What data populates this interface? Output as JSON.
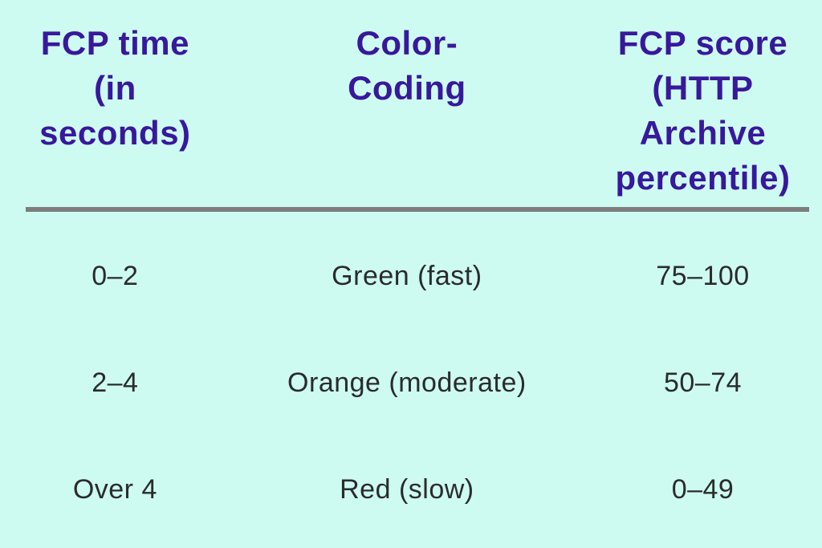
{
  "colors": {
    "background": "#cdfbf2",
    "header_text": "#38189b",
    "body_text": "#2b2b2b",
    "divider": "#7d7d7d"
  },
  "table": {
    "headers": [
      "FCP time\n(in\nseconds)",
      "Color-\nCoding",
      "FCP score\n(HTTP\nArchive\npercentile)"
    ],
    "rows": [
      [
        "0–2",
        "Green (fast)",
        "75–100"
      ],
      [
        "2–4",
        "Orange (moderate)",
        "50–74"
      ],
      [
        "Over 4",
        "Red (slow)",
        "0–49"
      ]
    ]
  },
  "chart_data": {
    "type": "table",
    "title": "",
    "columns": [
      "FCP time (in seconds)",
      "Color-Coding",
      "FCP score (HTTP Archive percentile)"
    ],
    "rows": [
      {
        "fcp_time_seconds": "0–2",
        "color_coding": "Green (fast)",
        "fcp_score_http_archive_percentile": "75–100"
      },
      {
        "fcp_time_seconds": "2–4",
        "color_coding": "Orange (moderate)",
        "fcp_score_http_archive_percentile": "50–74"
      },
      {
        "fcp_time_seconds": "Over 4",
        "color_coding": "Red (slow)",
        "fcp_score_http_archive_percentile": "0–49"
      }
    ]
  }
}
